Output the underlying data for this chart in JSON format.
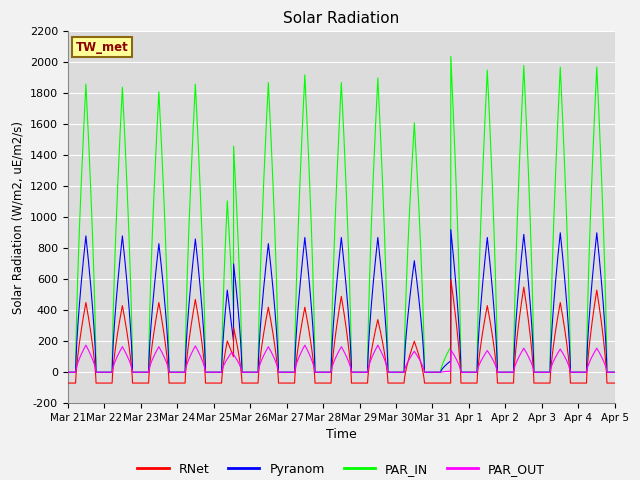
{
  "title": "Solar Radiation",
  "ylabel": "Solar Radiation (W/m2, uE/m2/s)",
  "xlabel": "Time",
  "ylim": [
    -200,
    2200
  ],
  "yticks": [
    -200,
    0,
    200,
    400,
    600,
    800,
    1000,
    1200,
    1400,
    1600,
    1800,
    2000,
    2200
  ],
  "xtick_labels": [
    "Mar 21",
    "Mar 22",
    "Mar 23",
    "Mar 24",
    "Mar 25",
    "Mar 26",
    "Mar 27",
    "Mar 28",
    "Mar 29",
    "Mar 30",
    "Mar 31",
    "Apr 1",
    "Apr 2",
    "Apr 3",
    "Apr 4",
    "Apr 5"
  ],
  "site_label": "TW_met",
  "site_label_color": "#8B0000",
  "site_label_bg": "#FFFF99",
  "site_label_border": "#8B6914",
  "colors": {
    "RNet": "#FF0000",
    "Pyranom": "#0000FF",
    "PAR_IN": "#00FF00",
    "PAR_OUT": "#FF00FF"
  },
  "plot_bg": "#DCDCDC",
  "fig_bg": "#F2F2F2",
  "grid_color": "#FFFFFF",
  "n_days": 15,
  "ppd": 288,
  "rnet_peaks": [
    450,
    430,
    450,
    470,
    340,
    420,
    420,
    490,
    340,
    200,
    600,
    430,
    550,
    450,
    530
  ],
  "pyranom_peaks": [
    880,
    880,
    830,
    860,
    800,
    830,
    870,
    870,
    870,
    720,
    920,
    870,
    890,
    900,
    900
  ],
  "par_in_peaks": [
    1860,
    1840,
    1810,
    1860,
    1670,
    1870,
    1920,
    1870,
    1900,
    1610,
    2040,
    1950,
    1980,
    1970,
    1970
  ],
  "par_out_peaks": [
    175,
    165,
    165,
    170,
    130,
    165,
    175,
    165,
    175,
    135,
    145,
    140,
    155,
    150,
    155
  ],
  "rnet_night": -70,
  "cloudy_days": [
    4,
    10
  ],
  "cloud_day4_factor": 0.72,
  "cloud_day10_factor": 0.78
}
